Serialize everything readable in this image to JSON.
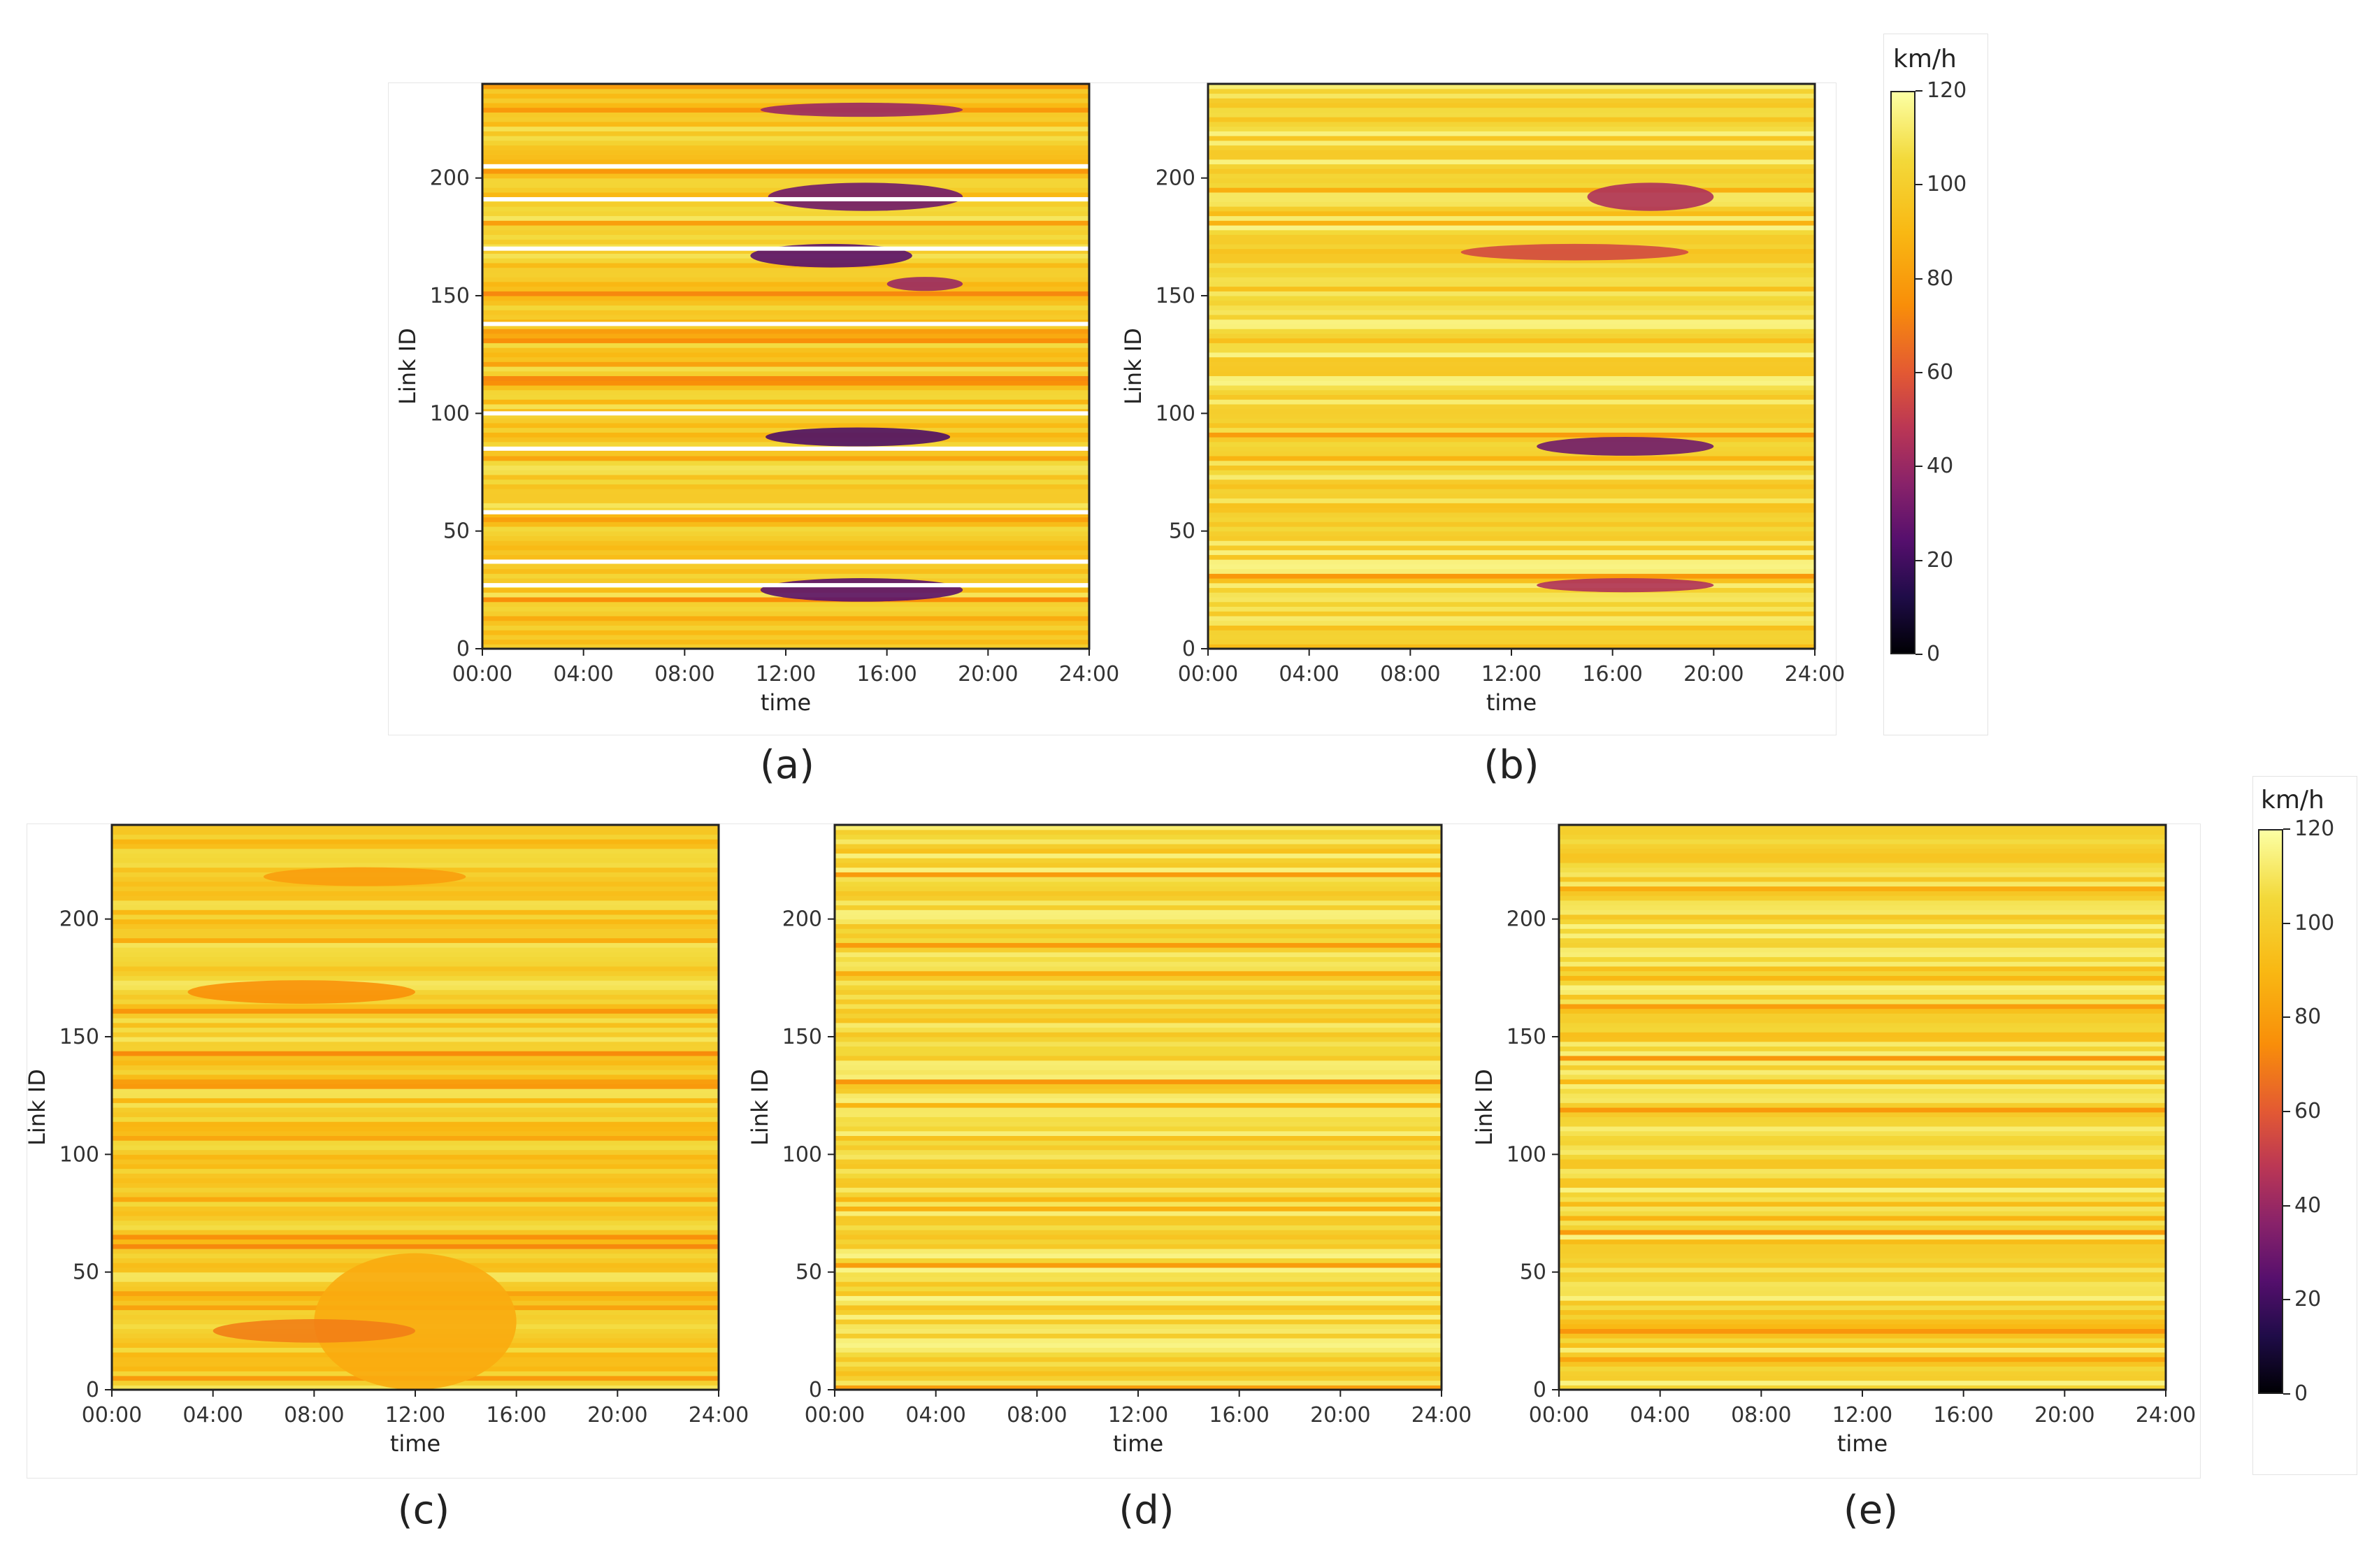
{
  "chart_data": [
    {
      "type": "heatmap",
      "panel": "(a)",
      "title": "",
      "xlabel": "time",
      "ylabel": "Link ID",
      "x_ticks": [
        "00:00",
        "04:00",
        "08:00",
        "12:00",
        "16:00",
        "20:00",
        "24:00"
      ],
      "y_ticks": [
        "0",
        "50",
        "100",
        "150",
        "200"
      ],
      "ylim": [
        0,
        240
      ],
      "xlim_hours": [
        0,
        24
      ],
      "unit": "km/h",
      "base_speed": 100,
      "missing_links": [
        205,
        191,
        170,
        138,
        100,
        85,
        58,
        37,
        27
      ],
      "congestion": [
        {
          "link": [
            226,
            232
          ],
          "hours": [
            11,
            19
          ],
          "speed": 40
        },
        {
          "link": [
            186,
            198
          ],
          "hours": [
            11.3,
            19
          ],
          "speed": 30
        },
        {
          "link": [
            162,
            172
          ],
          "hours": [
            10.6,
            17
          ],
          "speed": 25
        },
        {
          "link": [
            152,
            158
          ],
          "hours": [
            16,
            19
          ],
          "speed": 40
        },
        {
          "link": [
            86,
            94
          ],
          "hours": [
            11.2,
            18.5
          ],
          "speed": 22
        },
        {
          "link": [
            20,
            30
          ],
          "hours": [
            11,
            19
          ],
          "speed": 25
        }
      ]
    },
    {
      "type": "heatmap",
      "panel": "(b)",
      "title": "",
      "xlabel": "time",
      "ylabel": "Link ID",
      "x_ticks": [
        "00:00",
        "04:00",
        "08:00",
        "12:00",
        "16:00",
        "20:00",
        "24:00"
      ],
      "y_ticks": [
        "0",
        "50",
        "100",
        "150",
        "200"
      ],
      "ylim": [
        0,
        240
      ],
      "xlim_hours": [
        0,
        24
      ],
      "unit": "km/h",
      "base_speed": 105,
      "congestion": [
        {
          "link": [
            186,
            198
          ],
          "hours": [
            15,
            20
          ],
          "speed": 45
        },
        {
          "link": [
            165,
            172
          ],
          "hours": [
            10,
            19
          ],
          "speed": 55
        },
        {
          "link": [
            82,
            90
          ],
          "hours": [
            13,
            20
          ],
          "speed": 30
        },
        {
          "link": [
            24,
            30
          ],
          "hours": [
            13,
            20
          ],
          "speed": 45
        }
      ]
    },
    {
      "type": "heatmap",
      "panel": "(c)",
      "title": "",
      "xlabel": "time",
      "ylabel": "Link ID",
      "x_ticks": [
        "00:00",
        "04:00",
        "08:00",
        "12:00",
        "16:00",
        "20:00",
        "24:00"
      ],
      "y_ticks": [
        "0",
        "50",
        "100",
        "150",
        "200"
      ],
      "ylim": [
        0,
        240
      ],
      "xlim_hours": [
        0,
        24
      ],
      "unit": "km/h",
      "base_speed": 100,
      "congestion": [
        {
          "link": [
            214,
            222
          ],
          "hours": [
            6,
            14
          ],
          "speed": 80
        },
        {
          "link": [
            164,
            174
          ],
          "hours": [
            3,
            12
          ],
          "speed": 75
        },
        {
          "link": [
            0,
            58
          ],
          "hours": [
            8,
            16
          ],
          "speed": 85
        },
        {
          "link": [
            20,
            30
          ],
          "hours": [
            4,
            12
          ],
          "speed": 70
        }
      ]
    },
    {
      "type": "heatmap",
      "panel": "(d)",
      "title": "",
      "xlabel": "time",
      "ylabel": "Link ID",
      "x_ticks": [
        "00:00",
        "04:00",
        "08:00",
        "12:00",
        "16:00",
        "20:00",
        "24:00"
      ],
      "y_ticks": [
        "0",
        "50",
        "100",
        "150",
        "200"
      ],
      "ylim": [
        0,
        240
      ],
      "xlim_hours": [
        0,
        24
      ],
      "unit": "km/h",
      "base_speed": 105,
      "congestion": []
    },
    {
      "type": "heatmap",
      "panel": "(e)",
      "title": "",
      "xlabel": "time",
      "ylabel": "Link ID",
      "x_ticks": [
        "00:00",
        "04:00",
        "08:00",
        "12:00",
        "16:00",
        "20:00",
        "24:00"
      ],
      "y_ticks": [
        "0",
        "50",
        "100",
        "150",
        "200"
      ],
      "ylim": [
        0,
        240
      ],
      "xlim_hours": [
        0,
        24
      ],
      "unit": "km/h",
      "base_speed": 105,
      "congestion": []
    }
  ],
  "colorbar": {
    "title": "km/h",
    "ticks": [
      "0",
      "20",
      "40",
      "60",
      "80",
      "100",
      "120"
    ],
    "range": [
      0,
      120
    ],
    "colormap": "inferno"
  },
  "captions": [
    "(a)",
    "(b)",
    "(c)",
    "(d)",
    "(e)"
  ],
  "axis": {
    "xlabel": "time",
    "ylabel": "Link ID"
  }
}
